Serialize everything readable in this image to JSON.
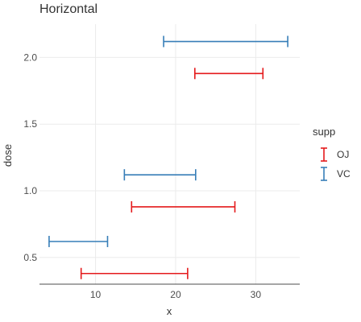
{
  "chart_data": {
    "type": "errorbar",
    "orientation": "horizontal",
    "title": "Horizontal",
    "xlabel": "x",
    "ylabel": "dose",
    "xlim": [
      3,
      35.5
    ],
    "ylim": [
      0.3,
      2.25
    ],
    "x_ticks": [
      10,
      20,
      30
    ],
    "y_ticks": [
      0.5,
      1.0,
      1.5,
      2.0
    ],
    "x_tick_labels": [
      "10",
      "20",
      "30"
    ],
    "y_tick_labels": [
      "0.5",
      "1.0",
      "1.5",
      "2.0"
    ],
    "grid": true,
    "legend": {
      "title": "supp",
      "position": "right"
    },
    "series": [
      {
        "name": "OJ",
        "color": "#e41a1c",
        "points": [
          {
            "dose": 0.5,
            "y": 0.38,
            "xmin": 8.2,
            "xmax": 21.5
          },
          {
            "dose": 1.0,
            "y": 0.88,
            "xmin": 14.5,
            "xmax": 27.4
          },
          {
            "dose": 2.0,
            "y": 1.88,
            "xmin": 22.4,
            "xmax": 30.9
          }
        ]
      },
      {
        "name": "VC",
        "color": "#377eb8",
        "points": [
          {
            "dose": 0.5,
            "y": 0.62,
            "xmin": 4.2,
            "xmax": 11.5
          },
          {
            "dose": 1.0,
            "y": 1.12,
            "xmin": 13.6,
            "xmax": 22.5
          },
          {
            "dose": 2.0,
            "y": 2.12,
            "xmin": 18.5,
            "xmax": 34.0
          }
        ]
      }
    ]
  }
}
